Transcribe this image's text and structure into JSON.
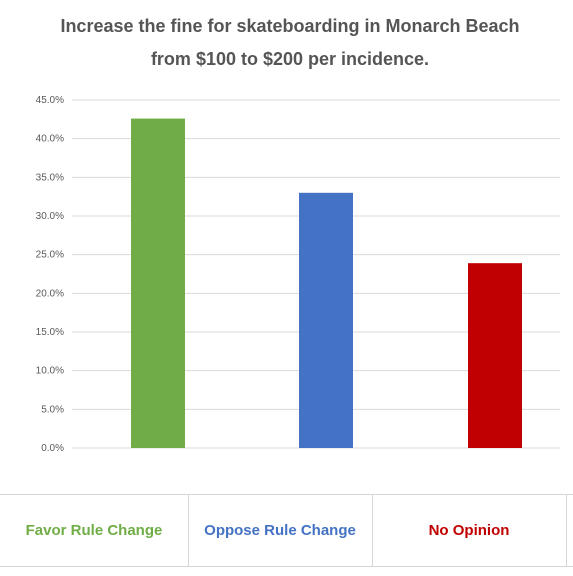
{
  "chart_data": {
    "type": "bar",
    "title": "Increase the fine for skateboarding in Monarch Beach from $100 to $200 per incidence.",
    "categories": [
      "Favor Rule Change",
      "Oppose Rule Change",
      "No Opinion"
    ],
    "values": [
      42.6,
      33.0,
      23.9
    ],
    "colors": [
      "#70ad47",
      "#4472c4",
      "#c00000"
    ],
    "y_ticks": [
      "0.0%",
      "5.0%",
      "10.0%",
      "15.0%",
      "20.0%",
      "25.0%",
      "30.0%",
      "35.0%",
      "40.0%",
      "45.0%"
    ],
    "ylim": [
      0,
      45
    ],
    "grid": true,
    "xlabel": "",
    "ylabel": ""
  }
}
